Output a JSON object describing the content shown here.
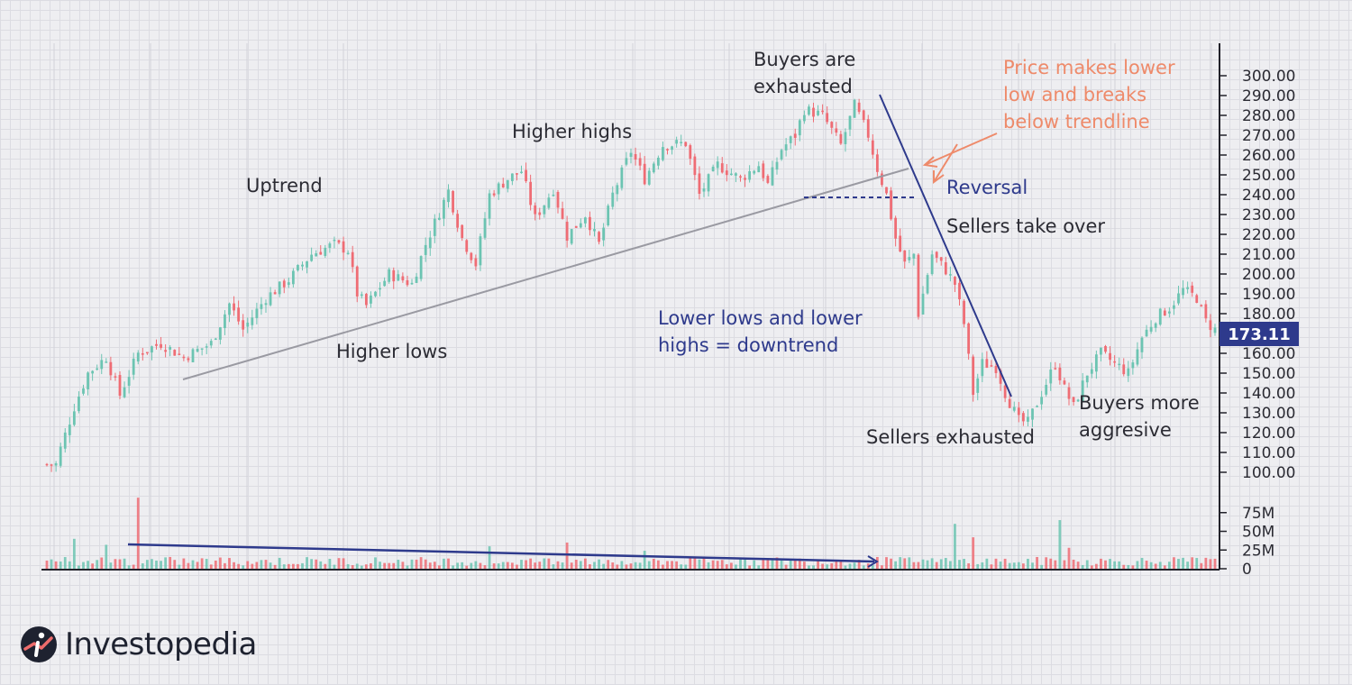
{
  "chart_data": {
    "type": "candlestick",
    "price_axis": {
      "min": 100,
      "max": 300,
      "step": 10,
      "ticks": [
        "300.00",
        "290.00",
        "280.00",
        "270.00",
        "260.00",
        "250.00",
        "240.00",
        "230.00",
        "220.00",
        "210.00",
        "200.00",
        "190.00",
        "180.00",
        "170.00",
        "160.00",
        "150.00",
        "140.00",
        "130.00",
        "120.00",
        "110.00",
        "100.00"
      ]
    },
    "last_price": "173.11",
    "volume_axis": {
      "ticks": [
        "75M",
        "50M",
        "25M",
        "0"
      ],
      "max": 100
    },
    "price_path": [
      [
        0,
        104
      ],
      [
        2,
        104
      ],
      [
        3,
        112
      ],
      [
        6,
        133
      ],
      [
        9,
        150
      ],
      [
        13,
        158
      ],
      [
        16,
        139
      ],
      [
        20,
        160
      ],
      [
        25,
        165
      ],
      [
        30,
        158
      ],
      [
        36,
        165
      ],
      [
        40,
        185
      ],
      [
        43,
        172
      ],
      [
        48,
        188
      ],
      [
        53,
        197
      ],
      [
        58,
        210
      ],
      [
        63,
        215
      ],
      [
        66,
        212
      ],
      [
        68,
        190
      ],
      [
        70,
        184
      ],
      [
        75,
        200
      ],
      [
        80,
        195
      ],
      [
        83,
        215
      ],
      [
        88,
        242
      ],
      [
        91,
        218
      ],
      [
        94,
        205
      ],
      [
        97,
        240
      ],
      [
        101,
        248
      ],
      [
        104,
        252
      ],
      [
        107,
        228
      ],
      [
        111,
        243
      ],
      [
        114,
        219
      ],
      [
        118,
        230
      ],
      [
        121,
        215
      ],
      [
        124,
        240
      ],
      [
        128,
        262
      ],
      [
        131,
        248
      ],
      [
        135,
        265
      ],
      [
        140,
        266
      ],
      [
        143,
        240
      ],
      [
        147,
        255
      ],
      [
        152,
        248
      ],
      [
        156,
        255
      ],
      [
        158,
        245
      ],
      [
        161,
        263
      ],
      [
        164,
        270
      ],
      [
        166,
        283
      ],
      [
        170,
        280
      ],
      [
        174,
        265
      ],
      [
        177,
        285
      ],
      [
        180,
        270
      ],
      [
        182,
        253
      ],
      [
        184,
        240
      ],
      [
        186,
        218
      ],
      [
        188,
        205
      ],
      [
        190,
        210
      ],
      [
        191,
        180
      ],
      [
        194,
        210
      ],
      [
        197,
        202
      ],
      [
        199,
        195
      ],
      [
        201,
        175
      ],
      [
        203,
        140
      ],
      [
        205,
        155
      ],
      [
        208,
        153
      ],
      [
        210,
        140
      ],
      [
        213,
        126
      ],
      [
        215,
        125
      ],
      [
        218,
        140
      ],
      [
        221,
        155
      ],
      [
        223,
        142
      ],
      [
        225,
        133
      ],
      [
        228,
        150
      ],
      [
        231,
        160
      ],
      [
        234,
        155
      ],
      [
        237,
        150
      ],
      [
        240,
        168
      ],
      [
        243,
        178
      ],
      [
        246,
        183
      ],
      [
        249,
        192
      ],
      [
        252,
        188
      ],
      [
        254,
        176
      ],
      [
        256,
        172
      ]
    ],
    "volume_spikes": [
      [
        20,
        95
      ],
      [
        13,
        32
      ],
      [
        6,
        40
      ],
      [
        97,
        30
      ],
      [
        114,
        35
      ],
      [
        131,
        24
      ],
      [
        153,
        14
      ],
      [
        178,
        12
      ],
      [
        194,
        14
      ],
      [
        199,
        60
      ],
      [
        203,
        42
      ],
      [
        222,
        65
      ],
      [
        224,
        28
      ]
    ],
    "annotations": {
      "uptrend": "Uptrend",
      "higher_highs": "Higher highs",
      "higher_lows": "Higher lows",
      "buyers_exhausted_1": "Buyers are",
      "buyers_exhausted_2": "exhausted",
      "price_lower_1": "Price makes lower",
      "price_lower_2": "low and breaks",
      "price_lower_3": "below trendline",
      "reversal": "Reversal",
      "sellers_take_over": "Sellers take over",
      "lower_lows_1": "Lower lows and lower",
      "lower_lows_2": "highs = downtrend",
      "sellers_exhausted": "Sellers exhausted",
      "buyers_aggressive_1": "Buyers more",
      "buyers_aggressive_2": "aggresive"
    },
    "colors": {
      "up": "#6cc4b2",
      "down": "#ef6c74",
      "annotation_text": "#2b2b33",
      "annotation_blue": "#2e3a8c",
      "annotation_orange": "#ee8a6a",
      "trendline": "#9a9aa2"
    }
  },
  "brand": {
    "name": "Investopedia",
    "logo_icon": "investopedia-logo-icon"
  }
}
